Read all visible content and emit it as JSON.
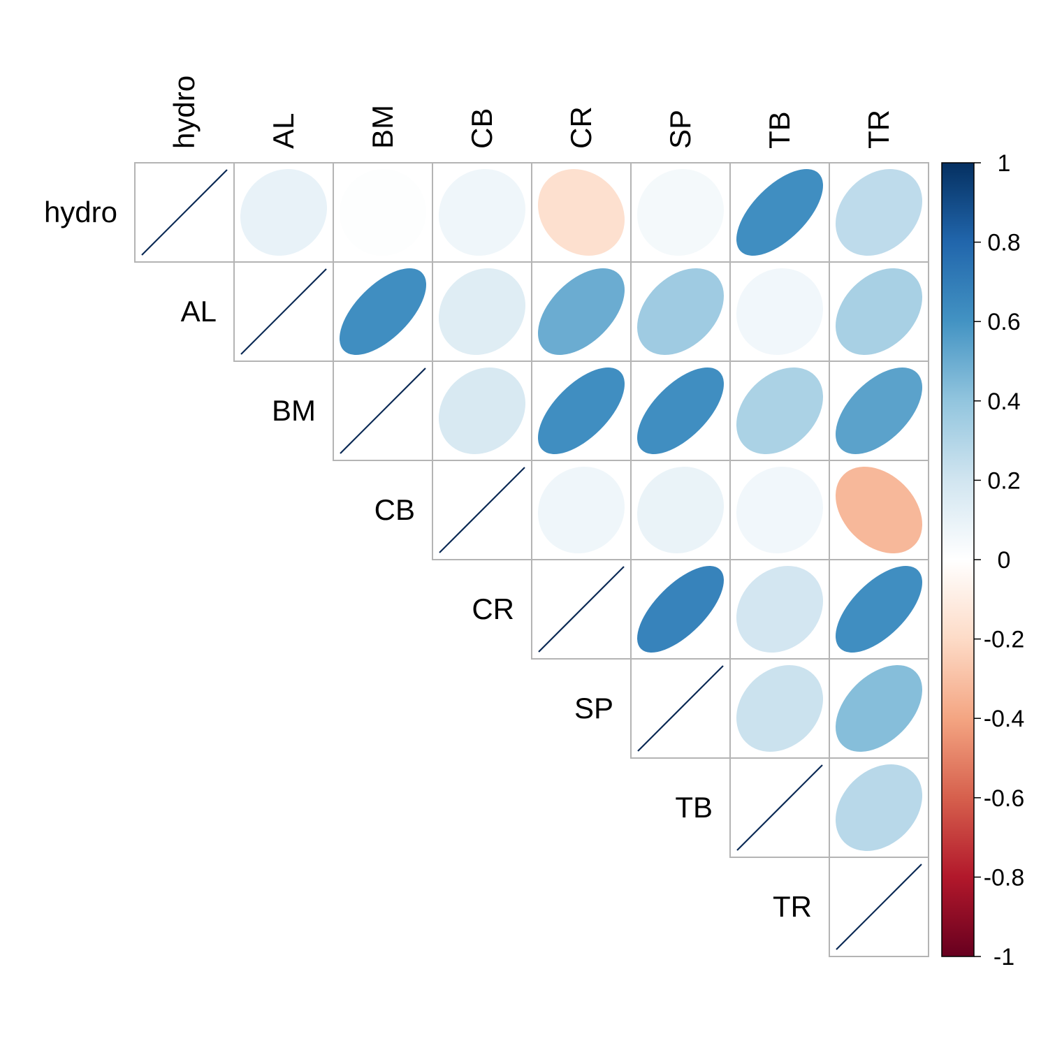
{
  "chart_data": {
    "type": "heatmap",
    "style": "correlation-ellipse-upper-triangle",
    "variables": [
      "hydro",
      "AL",
      "BM",
      "CB",
      "CR",
      "SP",
      "TB",
      "TR"
    ],
    "matrix": [
      [
        1.0,
        0.1,
        0.01,
        0.07,
        -0.17,
        0.05,
        0.62,
        0.26
      ],
      [
        0.1,
        1.0,
        0.62,
        0.14,
        0.5,
        0.36,
        0.06,
        0.33
      ],
      [
        0.01,
        0.62,
        1.0,
        0.17,
        0.62,
        0.62,
        0.32,
        0.54
      ],
      [
        0.07,
        0.14,
        0.17,
        1.0,
        0.07,
        0.09,
        0.06,
        -0.33
      ],
      [
        -0.17,
        0.5,
        0.62,
        0.07,
        1.0,
        0.67,
        0.19,
        0.62
      ],
      [
        0.05,
        0.36,
        0.62,
        0.09,
        0.67,
        1.0,
        0.22,
        0.43
      ],
      [
        0.62,
        0.06,
        0.32,
        0.06,
        0.19,
        0.22,
        1.0,
        0.28
      ],
      [
        0.26,
        0.33,
        0.54,
        -0.33,
        0.62,
        0.43,
        0.28,
        1.0
      ]
    ],
    "colorbar": {
      "min": -1,
      "max": 1,
      "tick_labels": [
        "1",
        "0.8",
        "0.6",
        "0.4",
        "0.2",
        "0",
        "-0.2",
        "-0.4",
        "-0.6",
        "-0.8",
        "-1"
      ],
      "stops": [
        "#67001f",
        "#b2182b",
        "#d6604d",
        "#f4a582",
        "#fddbc7",
        "#ffffff",
        "#d1e5f0",
        "#92c5de",
        "#4393c3",
        "#2166ac",
        "#053061"
      ]
    },
    "diagonal_line_color": "#0b2a55",
    "grid_color": "#b4b4b4"
  }
}
